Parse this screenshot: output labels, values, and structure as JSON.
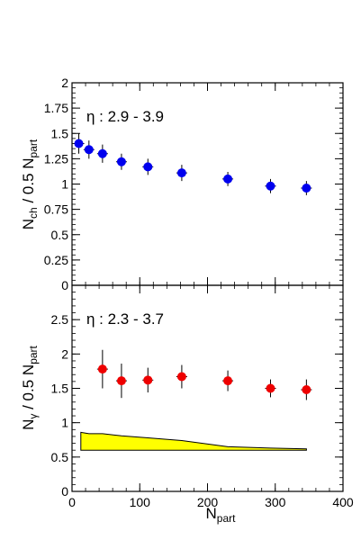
{
  "chart_data": [
    {
      "type": "scatter",
      "panel": "top",
      "annotation": "η : 2.9 - 3.9",
      "ylabel": {
        "main": "N",
        "sub": "ch",
        "rest": " / 0.5 N",
        "sub2": "part"
      },
      "ylim": [
        0,
        2
      ],
      "yticks": [
        0,
        0.25,
        0.5,
        0.75,
        1,
        1.25,
        1.5,
        1.75,
        2
      ],
      "ytick_labels": [
        "0",
        "0.25",
        "0.5",
        "0.75",
        "1",
        "1.25",
        "1.5",
        "1.75",
        "2"
      ],
      "xlim": [
        0,
        400
      ],
      "grid": false,
      "series": [
        {
          "color": "#0000ee",
          "points": [
            {
              "x": 10,
              "y": 1.4,
              "yerr": 0.1
            },
            {
              "x": 25,
              "y": 1.34,
              "yerr": 0.09
            },
            {
              "x": 45,
              "y": 1.3,
              "yerr": 0.09
            },
            {
              "x": 73,
              "y": 1.22,
              "yerr": 0.08
            },
            {
              "x": 112,
              "y": 1.17,
              "yerr": 0.08
            },
            {
              "x": 162,
              "y": 1.11,
              "yerr": 0.08
            },
            {
              "x": 230,
              "y": 1.05,
              "yerr": 0.07
            },
            {
              "x": 293,
              "y": 0.98,
              "yerr": 0.07
            },
            {
              "x": 346,
              "y": 0.96,
              "yerr": 0.07
            }
          ]
        }
      ]
    },
    {
      "type": "scatter",
      "panel": "bottom",
      "annotation": "η : 2.3 - 3.7",
      "ylabel": {
        "main": "N",
        "sub": "γ",
        "rest": " / 0.5 N",
        "sub2": "part"
      },
      "xlabel": {
        "main": "N",
        "sub": "part"
      },
      "ylim": [
        0,
        3
      ],
      "yticks": [
        0,
        0.5,
        1,
        1.5,
        2,
        2.5
      ],
      "ytick_labels": [
        "0",
        "0.5",
        "1",
        "1.5",
        "2",
        "2.5"
      ],
      "xlim": [
        0,
        400
      ],
      "xticks": [
        0,
        100,
        200,
        300,
        400
      ],
      "xtick_labels": [
        "0",
        "100",
        "200",
        "300",
        "400"
      ],
      "grid": false,
      "series": [
        {
          "color": "#ee0000",
          "points": [
            {
              "x": 45,
              "y": 1.78,
              "yerr": 0.28
            },
            {
              "x": 73,
              "y": 1.61,
              "yerr": 0.25
            },
            {
              "x": 112,
              "y": 1.62,
              "yerr": 0.18
            },
            {
              "x": 162,
              "y": 1.67,
              "yerr": 0.17
            },
            {
              "x": 230,
              "y": 1.61,
              "yerr": 0.15
            },
            {
              "x": 293,
              "y": 1.5,
              "yerr": 0.13
            },
            {
              "x": 346,
              "y": 1.48,
              "yerr": 0.15
            }
          ]
        }
      ],
      "band": {
        "color": "#ffff00",
        "x": [
          13,
          25,
          45,
          73,
          112,
          162,
          230,
          293,
          346
        ],
        "upper": [
          0.86,
          0.84,
          0.84,
          0.81,
          0.78,
          0.74,
          0.65,
          0.63,
          0.62
        ],
        "lower": [
          0.6,
          0.6,
          0.6,
          0.6,
          0.6,
          0.6,
          0.6,
          0.6,
          0.6
        ]
      }
    }
  ]
}
